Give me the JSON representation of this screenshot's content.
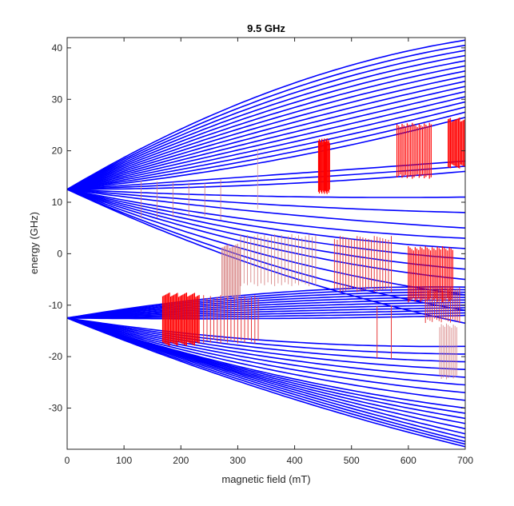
{
  "chart_data": {
    "type": "line",
    "title": "9.5 GHz",
    "xlabel": "magnetic field (mT)",
    "ylabel": "energy (GHz)",
    "xlim": [
      0,
      700
    ],
    "ylim": [
      -38,
      42
    ],
    "xticks": [
      0,
      100,
      200,
      300,
      400,
      500,
      600,
      700
    ],
    "yticks": [
      -30,
      -20,
      -10,
      0,
      10,
      20,
      30,
      40
    ],
    "grid": false,
    "legend": "none",
    "energy_level_color": "#0000ff",
    "transition_color": "#ff0000",
    "faint_transition_color": "#d8a0a0",
    "zero_field_levels": [
      12.5,
      -12.5
    ],
    "upper_manifold": {
      "levels_at_700mT": [
        41.5,
        40.5,
        39.5,
        38.5,
        37.5,
        36.5,
        35.5,
        34.5,
        33.5,
        32.5,
        31.5,
        30.5,
        29.5,
        28.5,
        27.5,
        26.5,
        18.0,
        17.0,
        16.0,
        11.0,
        8.0,
        5.0,
        3.0,
        1.0,
        -1.0,
        -3.0,
        -5.0,
        -8.0,
        -11.0,
        -13.5
      ],
      "levels_at_450mT": [
        35.0,
        34.0,
        33.0,
        32.0,
        31.0,
        30.0,
        29.0,
        28.0,
        27.0,
        26.0,
        25.0,
        24.0,
        23.0,
        22.0,
        21.0,
        20.0,
        16.0,
        15.0,
        14.0,
        11.0,
        9.0,
        7.0,
        5.0,
        3.5,
        2.0,
        0.5,
        -1.0,
        -3.0,
        -5.0,
        -6.5
      ]
    },
    "lower_manifold": {
      "levels_at_700mT": [
        -6.5,
        -7.0,
        -7.5,
        -8.0,
        -8.5,
        -9.0,
        -9.5,
        -10.0,
        -10.5,
        -11.0,
        -11.5,
        -12.0,
        -18.0,
        -19.5,
        -21.0,
        -22.5,
        -24.0,
        -25.5,
        -27.0,
        -28.5,
        -30.0,
        -31.0,
        -32.0,
        -33.0,
        -34.0,
        -35.0,
        -35.8,
        -36.5,
        -37.0,
        -37.5
      ],
      "levels_at_450mT": [
        -7.0,
        -7.5,
        -8.0,
        -8.5,
        -9.0,
        -9.5,
        -10.0,
        -10.5,
        -11.0,
        -11.5,
        -12.0,
        -12.5,
        -17.5,
        -18.5,
        -19.5,
        -20.5,
        -21.5,
        -22.5,
        -23.5,
        -24.5,
        -25.5,
        -26.0,
        -26.5,
        -27.0,
        -27.5,
        -28.0,
        -28.5,
        -29.0,
        -29.5,
        -30.0
      ]
    },
    "transitions": [
      {
        "x": [
          168,
          232
        ],
        "y_low": -17.5,
        "y_high": -8.0,
        "intensity": "strong",
        "spacing": 2
      },
      {
        "x": [
          240,
          338
        ],
        "y_low": -17.0,
        "y_high": -8.5,
        "intensity": "medium",
        "spacing": 6
      },
      {
        "x": [
          272,
          305
        ],
        "y_low": -8.5,
        "y_high": 1.5,
        "intensity": "weak",
        "spacing": 2
      },
      {
        "x": [
          305,
          440
        ],
        "y_low": -6.0,
        "y_high": 3.5,
        "intensity": "weak",
        "spacing": 6
      },
      {
        "x": [
          442,
          462
        ],
        "y_low": 12.0,
        "y_high": 22.0,
        "intensity": "strong",
        "spacing": 1.5
      },
      {
        "x": [
          470,
          570
        ],
        "y_low": -7.0,
        "y_high": 3.0,
        "intensity": "medium",
        "spacing": 5
      },
      {
        "x": [
          545,
          570
        ],
        "y_low": -20.0,
        "y_high": -10.5,
        "intensity": "medium",
        "spacing": 25
      },
      {
        "x": [
          580,
          640
        ],
        "y_low": 15.0,
        "y_high": 25.0,
        "intensity": "strong",
        "spacing": 3
      },
      {
        "x": [
          600,
          680
        ],
        "y_low": -9.0,
        "y_high": 1.0,
        "intensity": "strong",
        "spacing": 3
      },
      {
        "x": [
          630,
          690
        ],
        "y_low": -13.0,
        "y_high": -7.0,
        "intensity": "medium",
        "spacing": 4
      },
      {
        "x": [
          655,
          685
        ],
        "y_low": -24.0,
        "y_high": -14.0,
        "intensity": "weak",
        "spacing": 3
      },
      {
        "x": [
          670,
          700
        ],
        "y_low": 17.0,
        "y_high": 26.0,
        "intensity": "strong",
        "spacing": 2
      },
      {
        "x": [
          130,
          270
        ],
        "y_low": 7.0,
        "y_high": 14.0,
        "intensity": "weak",
        "spacing": 28
      },
      {
        "x": [
          335,
          335
        ],
        "y_low": 9.0,
        "y_high": 20.0,
        "intensity": "faint",
        "spacing": 1
      }
    ]
  }
}
